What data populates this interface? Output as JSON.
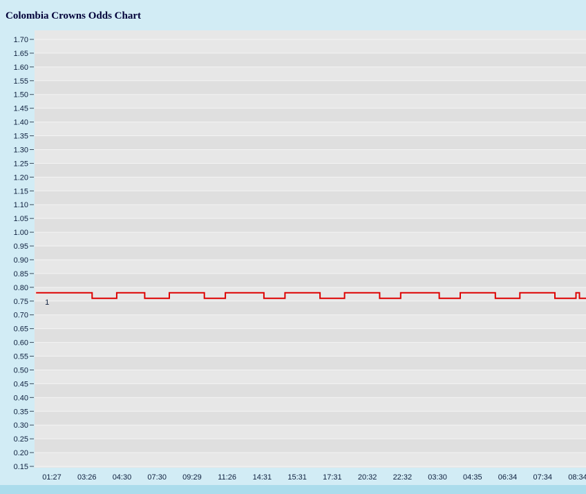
{
  "chart_data": {
    "type": "line",
    "step": true,
    "title": "Colombia Crowns Odds Chart",
    "xlabel": "",
    "ylabel": "",
    "x_tick_labels": [
      "01:27",
      "03:26",
      "04:30",
      "07:30",
      "09:29",
      "11:26",
      "14:31",
      "15:31",
      "17:31",
      "20:32",
      "22:32",
      "03:30",
      "04:35",
      "06:34",
      "07:34",
      "08:34"
    ],
    "y_axis": {
      "min": 0.15,
      "max": 1.7,
      "step": 0.05,
      "tick_format": "2-decimals"
    },
    "grid": "horizontal-bands",
    "legend_position": "label-at-line-start",
    "series": [
      {
        "name": "1",
        "color": "#dd0000",
        "high_value": 0.78,
        "low_value": 0.76,
        "points": [
          [
            -0.45,
            0.78
          ],
          [
            1.15,
            0.76
          ],
          [
            1.85,
            0.78
          ],
          [
            2.65,
            0.76
          ],
          [
            3.35,
            0.78
          ],
          [
            4.35,
            0.76
          ],
          [
            4.95,
            0.78
          ],
          [
            6.05,
            0.76
          ],
          [
            6.65,
            0.78
          ],
          [
            7.65,
            0.76
          ],
          [
            8.35,
            0.78
          ],
          [
            9.35,
            0.76
          ],
          [
            9.95,
            0.78
          ],
          [
            11.05,
            0.76
          ],
          [
            11.65,
            0.78
          ],
          [
            12.65,
            0.76
          ],
          [
            13.35,
            0.78
          ],
          [
            14.35,
            0.76
          ],
          [
            14.95,
            0.78
          ],
          [
            15.05,
            0.76
          ]
        ]
      }
    ]
  },
  "colors": {
    "background": "#d2ecf5",
    "plot_background": "#e7e7e7",
    "plot_band_alt": "#dfdfdf",
    "gridline": "#f4f4f4",
    "axis_label": "#0d1e3c",
    "tick_mark": "#3c4a5a",
    "title_text": "#000038",
    "line": "#dd0000",
    "bottom_bar": "#abdcec"
  }
}
